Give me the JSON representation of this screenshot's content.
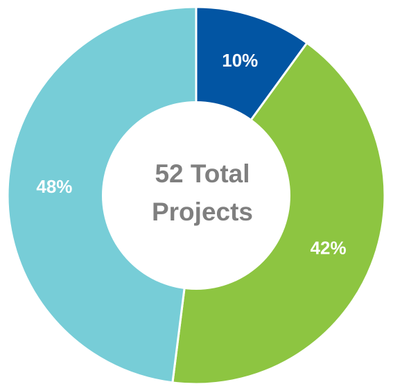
{
  "chart_data": {
    "type": "pie",
    "donut": true,
    "center_text": [
      "52 Total",
      "Projects"
    ],
    "slices": [
      {
        "label": "10%",
        "value": 10,
        "color": "#0255a3"
      },
      {
        "label": "42%",
        "value": 42,
        "color": "#8dc541"
      },
      {
        "label": "48%",
        "value": 48,
        "color": "#77cdd7"
      }
    ],
    "start": "12 o'clock",
    "direction": "clockwise",
    "separator_color": "#ffffff"
  }
}
